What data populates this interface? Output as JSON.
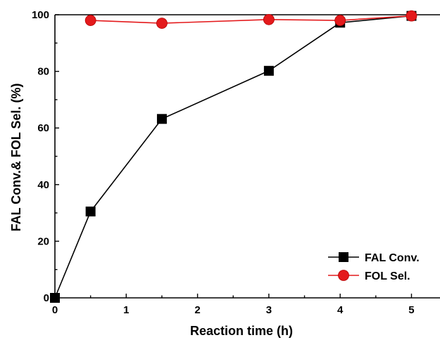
{
  "chart_data": {
    "type": "line",
    "xlabel": "Reaction time (h)",
    "ylabel": "FAL Conv.& FOL Sel. (%)",
    "xlim": [
      0,
      5.4
    ],
    "ylim": [
      0,
      100
    ],
    "xticks": [
      0,
      1,
      2,
      3,
      4,
      5
    ],
    "yticks": [
      0,
      20,
      40,
      60,
      80,
      100
    ],
    "grid": false,
    "legend_position": "bottom-right",
    "series": [
      {
        "name": "FAL Conv.",
        "marker": "square",
        "color": "#000000",
        "x": [
          0,
          0.5,
          1.5,
          3,
          4,
          5
        ],
        "y": [
          0,
          30.5,
          63.2,
          80.2,
          97.2,
          99.6
        ]
      },
      {
        "name": "FOL Sel.",
        "marker": "circle",
        "color": "#e41a1c",
        "x": [
          0.5,
          1.5,
          3,
          4,
          5
        ],
        "y": [
          98.0,
          97.0,
          98.3,
          98.0,
          99.6
        ]
      }
    ]
  }
}
